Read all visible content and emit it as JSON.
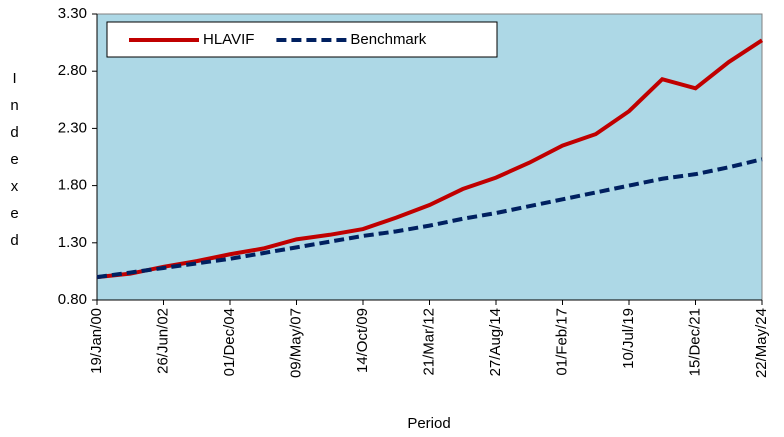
{
  "chart_data": {
    "type": "line",
    "y_label": "Indexed",
    "x_label": "Period",
    "x": [
      "19/Jan/00",
      null,
      "26/Jun/02",
      null,
      "01/Dec/04",
      null,
      "09/May/07",
      null,
      "14/Oct/09",
      null,
      "21/Mar/12",
      null,
      "27/Aug/14",
      null,
      "01/Feb/17",
      null,
      "10/Jul/19",
      null,
      "15/Dec/21",
      null,
      "22/May/24"
    ],
    "series": [
      {
        "name": "HLAVIF",
        "color": "#c00000",
        "dashed": false,
        "values": [
          1.0,
          1.03,
          1.09,
          1.14,
          1.2,
          1.25,
          1.33,
          1.37,
          1.42,
          1.52,
          1.63,
          1.77,
          1.87,
          2.0,
          2.15,
          2.25,
          2.45,
          2.73,
          2.65,
          2.88,
          3.07
        ]
      },
      {
        "name": "Benchmark",
        "color": "#002060",
        "dashed": true,
        "values": [
          1.0,
          1.04,
          1.08,
          1.12,
          1.16,
          1.21,
          1.26,
          1.31,
          1.36,
          1.4,
          1.45,
          1.51,
          1.56,
          1.62,
          1.68,
          1.74,
          1.8,
          1.86,
          1.9,
          1.96,
          2.03
        ]
      }
    ],
    "ylim": [
      0.8,
      3.3
    ],
    "yticks": [
      {
        "value": 0.8,
        "label": "0.80"
      },
      {
        "value": 1.3,
        "label": "1.30"
      },
      {
        "value": 1.8,
        "label": "1.80"
      },
      {
        "value": 2.3,
        "label": "2.30"
      },
      {
        "value": 2.8,
        "label": "2.80"
      },
      {
        "value": 3.3,
        "label": "3.30"
      }
    ],
    "plot_background": "#add8e6",
    "legend": "top-left"
  }
}
